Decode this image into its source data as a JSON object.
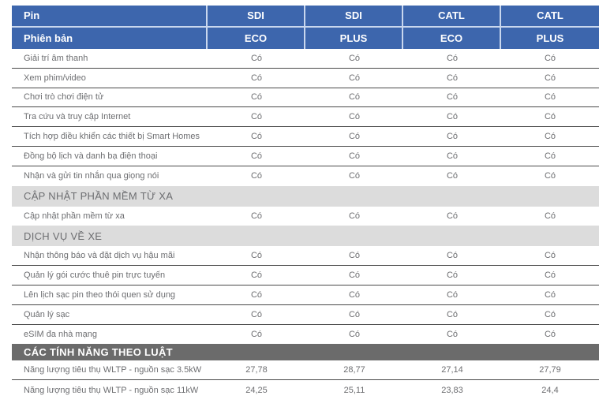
{
  "table": {
    "header": {
      "row1": {
        "label": "Pin",
        "values": [
          "SDI",
          "SDI",
          "CATL",
          "CATL"
        ]
      },
      "row2": {
        "label": "Phiên bản",
        "values": [
          "ECO",
          "PLUS",
          "ECO",
          "PLUS"
        ]
      }
    },
    "rows": [
      {
        "type": "feature",
        "label": "Giải trí âm thanh",
        "values": [
          "Có",
          "Có",
          "Có",
          "Có"
        ],
        "divider": true
      },
      {
        "type": "feature",
        "label": "Xem phim/video",
        "values": [
          "Có",
          "Có",
          "Có",
          "Có"
        ],
        "divider": true
      },
      {
        "type": "feature",
        "label": "Chơi trò chơi điện tử",
        "values": [
          "Có",
          "Có",
          "Có",
          "Có"
        ],
        "divider": true
      },
      {
        "type": "feature",
        "label": "Tra cứu và truy cập Internet",
        "values": [
          "Có",
          "Có",
          "Có",
          "Có"
        ],
        "divider": true
      },
      {
        "type": "feature",
        "label": "Tích hợp điều khiển các thiết bị Smart Homes",
        "values": [
          "Có",
          "Có",
          "Có",
          "Có"
        ],
        "divider": true
      },
      {
        "type": "feature",
        "label": "Đồng bộ lịch và danh bạ điện thoại",
        "values": [
          "Có",
          "Có",
          "Có",
          "Có"
        ],
        "divider": true
      },
      {
        "type": "feature",
        "label": "Nhận và gửi tin nhắn qua giọng nói",
        "values": [
          "Có",
          "Có",
          "Có",
          "Có"
        ],
        "divider": false
      },
      {
        "type": "section",
        "label": "CẬP NHẬT PHẦN MỀM TỪ XA"
      },
      {
        "type": "feature",
        "label": "Cập nhật phần mềm từ xa",
        "values": [
          "Có",
          "Có",
          "Có",
          "Có"
        ],
        "divider": false
      },
      {
        "type": "section",
        "label": "DỊCH VỤ VỀ XE"
      },
      {
        "type": "feature",
        "label": "Nhận thông báo và đặt dịch vụ hậu mãi",
        "values": [
          "Có",
          "Có",
          "Có",
          "Có"
        ],
        "divider": true
      },
      {
        "type": "feature",
        "label": "Quản lý gói cước thuê pin trực tuyến",
        "values": [
          "Có",
          "Có",
          "Có",
          "Có"
        ],
        "divider": true
      },
      {
        "type": "feature",
        "label": "Lên lịch sạc pin theo thói quen sử dụng",
        "values": [
          "Có",
          "Có",
          "Có",
          "Có"
        ],
        "divider": true
      },
      {
        "type": "feature",
        "label": "Quản lý sạc",
        "values": [
          "Có",
          "Có",
          "Có",
          "Có"
        ],
        "divider": true
      },
      {
        "type": "feature",
        "label": "eSIM đa nhà mạng",
        "values": [
          "Có",
          "Có",
          "Có",
          "Có"
        ],
        "divider": false
      },
      {
        "type": "section-dark",
        "label": "CÁC TÍNH NĂNG THEO LUẬT"
      },
      {
        "type": "feature",
        "label": "Năng lượng tiêu thụ WLTP - nguồn sạc 3.5kW",
        "values": [
          "27,78",
          "28,77",
          "27,14",
          "27,79"
        ],
        "divider": true
      },
      {
        "type": "feature",
        "label": "Năng lượng tiêu thụ WLTP - nguồn sạc 11kW",
        "values": [
          "24,25",
          "25,11",
          "23,83",
          "24,4"
        ],
        "divider": false
      }
    ],
    "colors": {
      "header_bg": "#3d66ad",
      "header_text": "#ffffff",
      "header_separator": "#c9d7ee",
      "section_light_bg": "#dcdcdc",
      "section_dark_bg": "#6b6b6b",
      "row_text": "#6d6e71",
      "row_divider": "#4a4a4a"
    }
  }
}
